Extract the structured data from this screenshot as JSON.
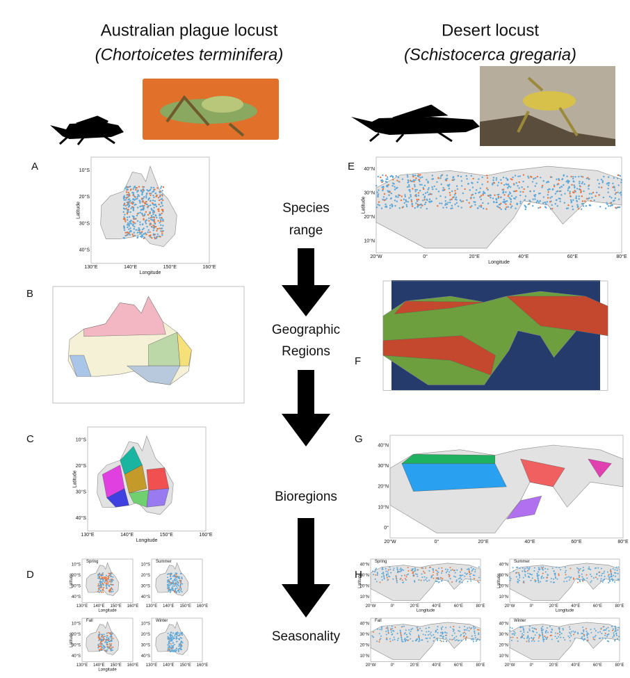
{
  "columns": [
    {
      "common_name": "Australian plague locust",
      "scientific_name": "(Chortoicetes terminifera)"
    },
    {
      "common_name": "Desert locust",
      "scientific_name": "(Schistocerca gregaria)"
    }
  ],
  "steps": [
    [
      "Species",
      "range"
    ],
    [
      "Geographic",
      "Regions"
    ],
    [
      "Bioregions"
    ],
    [
      "Seasonality"
    ]
  ],
  "panel_labels": [
    "A",
    "B",
    "C",
    "D",
    "E",
    "F",
    "G",
    "H"
  ],
  "axis_labels": {
    "latitude": "Latitude",
    "longitude": "Longitude"
  },
  "seasons": [
    "Spring",
    "Summer",
    "Fall",
    "Winter"
  ],
  "australia_lat_ticks": [
    "10°S",
    "20°S",
    "30°S",
    "40°S"
  ],
  "australia_lon_ticks": [
    "130°E",
    "140°E",
    "150°E",
    "160°E"
  ],
  "world_lat_ticks": [
    "40°N",
    "30°N",
    "20°N",
    "10°N",
    "0°"
  ],
  "world_lon_ticks": [
    "20°W",
    "0°",
    "20°E",
    "40°E",
    "60°E",
    "80°E"
  ]
}
